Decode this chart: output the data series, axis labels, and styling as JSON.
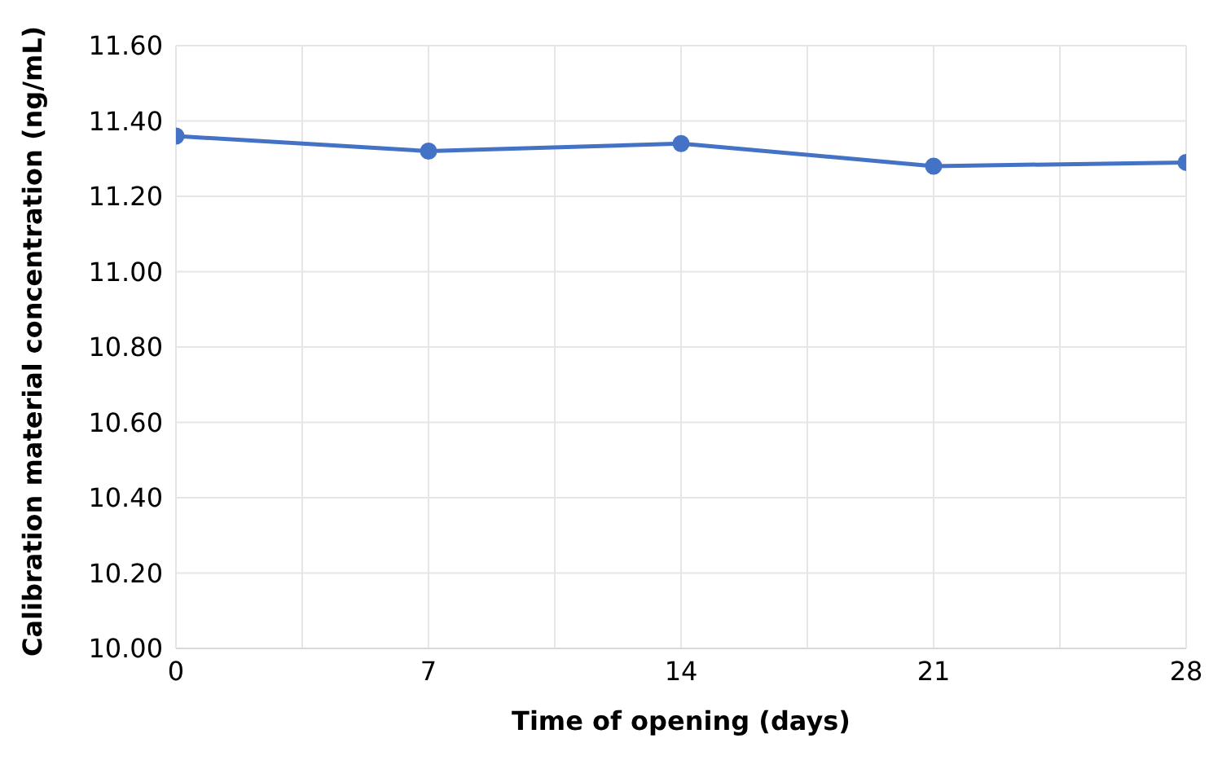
{
  "chart_data": {
    "type": "line",
    "xlabel": "Time of opening (days)",
    "ylabel": "Calibration material concentration (ng/mL)",
    "x": [
      0,
      7,
      14,
      21,
      28
    ],
    "series": [
      {
        "color": "#4472c4",
        "values": [
          11.36,
          11.32,
          11.34,
          11.28,
          11.29
        ]
      }
    ],
    "xlim": [
      0,
      28
    ],
    "xticks": [
      0,
      {
        "value": 3.5,
        "label": null
      },
      7,
      {
        "value": 10.5,
        "label": null
      },
      14,
      {
        "value": 17.5,
        "label": null
      },
      21,
      {
        "value": 24.5,
        "label": null
      },
      28
    ],
    "ylim": [
      10,
      11.6
    ],
    "yticks": [
      {
        "value": 10,
        "label": "10.00"
      },
      {
        "value": 10.2,
        "label": "10.20"
      },
      {
        "value": 10.4,
        "label": "10.40"
      },
      {
        "value": 10.6,
        "label": "10.60"
      },
      {
        "value": 10.8,
        "label": "10.80"
      },
      {
        "value": 11,
        "label": "11.00"
      },
      {
        "value": 11.2,
        "label": "11.20"
      },
      {
        "value": 11.4,
        "label": "11.40"
      },
      {
        "value": 11.6,
        "label": "11.60"
      }
    ],
    "grid": true,
    "marker": "circle",
    "line_style": "solid",
    "legend": false
  }
}
